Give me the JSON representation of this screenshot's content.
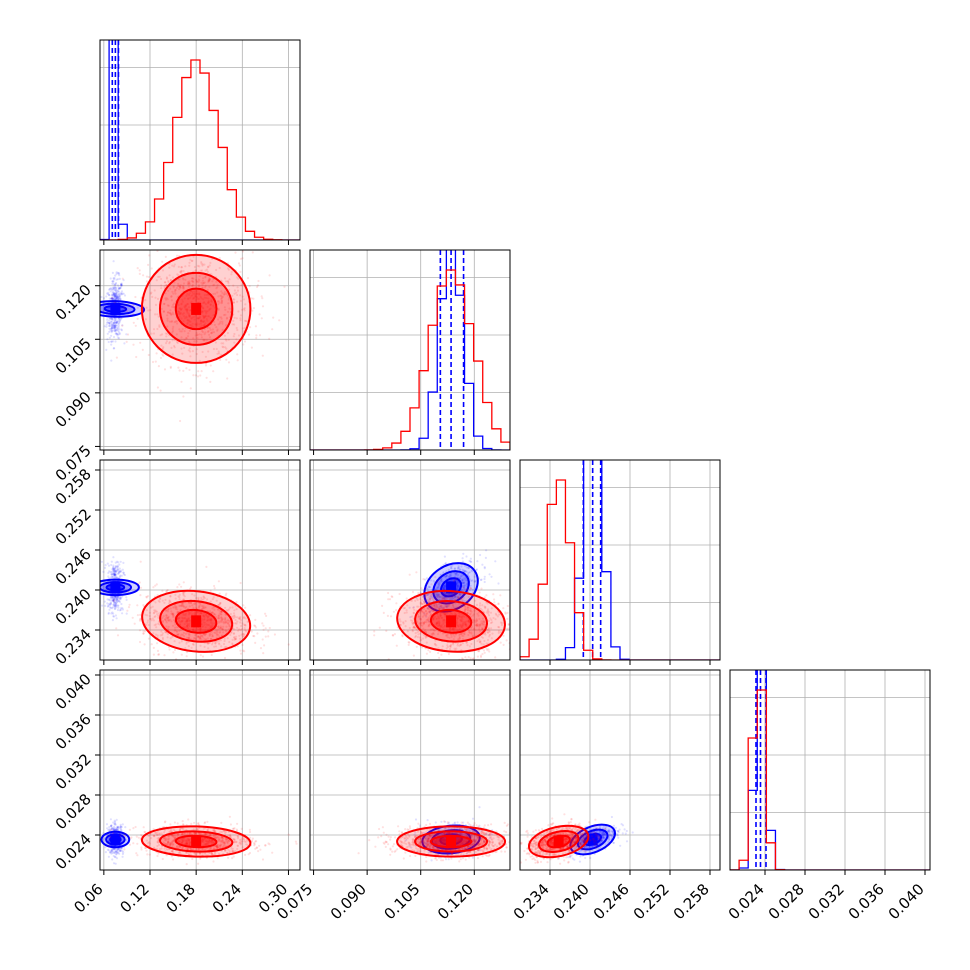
{
  "chart_data": {
    "type": "scatter",
    "subtype": "corner-plot",
    "title": "",
    "grid": true,
    "colors": {
      "series_a": "#0000ff",
      "series_b": "#ff0000",
      "grid": "#b0b0b0"
    },
    "parameters": [
      {
        "range": [
          0.055,
          0.315
        ],
        "ticks": [
          "0.06",
          "0.12",
          "0.18",
          "0.24",
          "0.30"
        ]
      },
      {
        "range": [
          0.074,
          0.13
        ],
        "ticks": [
          "0.075",
          "0.090",
          "0.105",
          "0.120"
        ]
      },
      {
        "range": [
          0.2295,
          0.2595
        ],
        "ticks": [
          "0.234",
          "0.240",
          "0.246",
          "0.252",
          "0.258"
        ]
      },
      {
        "range": [
          0.0205,
          0.0405
        ],
        "ticks": [
          "0.024",
          "0.028",
          "0.032",
          "0.036",
          "0.040"
        ]
      }
    ],
    "series": [
      {
        "name": "",
        "color": "#0000ff",
        "medians": [
          0.075,
          0.1135,
          0.2404,
          0.02355
        ],
        "sigmas": [
          0.004,
          0.0032,
          0.0014,
          0.00055
        ],
        "quantiles": [
          [
            0.071,
            0.075,
            0.079
          ],
          [
            0.1105,
            0.1135,
            0.117
          ],
          [
            0.239,
            0.2404,
            0.2416
          ],
          [
            0.0231,
            0.02355,
            0.0241
          ]
        ],
        "density_axes": {
          "histogram_peak": 1.0
        }
      },
      {
        "name": "",
        "color": "#ff0000",
        "medians": [
          0.18,
          0.1135,
          0.2353,
          0.02335
        ],
        "sigmas": [
          0.028,
          0.006,
          0.0018,
          0.0006
        ],
        "quantiles": [],
        "density_axes": {
          "histogram_peak": 0.3
        }
      }
    ],
    "correlations": {
      "series_a": {
        "1-0": 0.1,
        "2-0": 0.0,
        "2-1": 0.55,
        "3-0": 0.0,
        "3-1": 0.15,
        "3-2": 0.55
      },
      "series_b": {
        "1-0": 0.0,
        "2-0": -0.15,
        "2-1": -0.1,
        "3-0": -0.1,
        "3-1": 0.0,
        "3-2": 0.35
      }
    }
  }
}
